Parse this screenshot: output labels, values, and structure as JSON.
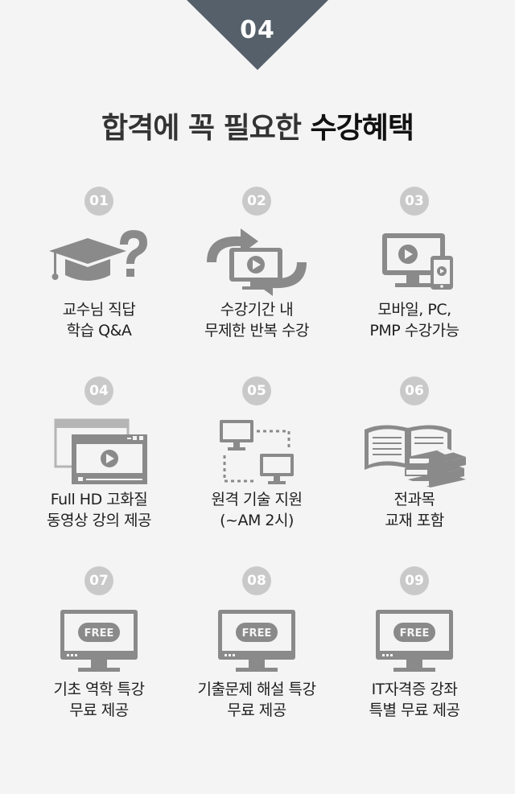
{
  "badge": {
    "number": "04"
  },
  "headline": {
    "normal": "합격에 꼭 필요한 ",
    "bold": "수강혜택"
  },
  "colors": {
    "badge": "#56606b",
    "icon_gray": "#8a8a8a",
    "number_circle": "#c9c9c9"
  },
  "benefits": [
    {
      "num": "01",
      "icon": "graduation-cap-question-icon",
      "line1": "교수님 직답",
      "line2": "학습 Q&A"
    },
    {
      "num": "02",
      "icon": "repeat-video-icon",
      "line1": "수강기간 내",
      "line2": "무제한 반복 수강"
    },
    {
      "num": "03",
      "icon": "monitor-mobile-icon",
      "line1": "모바일, PC,",
      "line2": "PMP 수강가능"
    },
    {
      "num": "04",
      "icon": "hd-video-windows-icon",
      "line1": "Full HD 고화질",
      "line2": "동영상 강의 제공"
    },
    {
      "num": "05",
      "icon": "remote-support-icon",
      "line1": "원격 기술 지원",
      "line2": "(~AM 2시)"
    },
    {
      "num": "06",
      "icon": "books-icon",
      "line1": "전과목",
      "line2": "교재 포함"
    },
    {
      "num": "07",
      "icon": "free-monitor-icon",
      "line1": "기초 역학 특강",
      "line2": "무료 제공",
      "free_label": "FREE"
    },
    {
      "num": "08",
      "icon": "free-monitor-icon",
      "line1": "기출문제 해설 특강",
      "line2": "무료 제공",
      "free_label": "FREE"
    },
    {
      "num": "09",
      "icon": "free-monitor-icon",
      "line1": "IT자격증 강좌",
      "line2": "특별 무료 제공",
      "free_label": "FREE"
    }
  ]
}
